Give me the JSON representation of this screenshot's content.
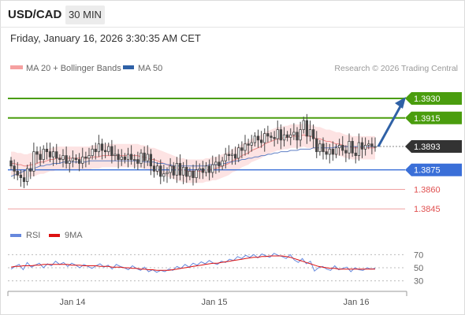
{
  "header": {
    "symbol": "USD/CAD",
    "interval": "30 MIN",
    "datetime": "Friday, January 16, 2026 3:30:35 AM CET"
  },
  "legend": {
    "ma20": "MA 20 + Bollinger Bands",
    "ma50": "MA 50",
    "copyright": "Research © 2026 Trading Central",
    "rsi": "RSI",
    "rsi_ma": "9MA"
  },
  "colors": {
    "green": "#4a9d0e",
    "blue": "#3a6fd8",
    "red": "#e05050",
    "dark": "#333333",
    "candle": "#444444",
    "band": "#fde3e3",
    "ma20": "#ee8888",
    "ma50": "#5f7fc4",
    "arrow": "#2f61a6",
    "rsi": "#6688dd",
    "rsi_ma": "#dd1111"
  },
  "chart_data": [
    {
      "type": "candlestick",
      "symbol": "USD/CAD",
      "interval": "30 MIN",
      "ylim": [
        1.3833,
        1.3947
      ],
      "x_ticks": [
        "Jan 14",
        "Jan 15",
        "Jan 16"
      ],
      "price_levels": [
        {
          "value": 1.393,
          "label": "1.3930",
          "style": "resistance"
        },
        {
          "value": 1.3915,
          "label": "1.3915",
          "style": "resistance"
        },
        {
          "value": 1.3893,
          "label": "1.3893",
          "style": "last"
        },
        {
          "value": 1.3875,
          "label": "1.3875",
          "style": "pivot"
        },
        {
          "value": 1.386,
          "label": "1.3860",
          "style": "support"
        },
        {
          "value": 1.3845,
          "label": "1.3845",
          "style": "support"
        }
      ],
      "closes": [
        1.3878,
        1.3874,
        1.3871,
        1.3869,
        1.3866,
        1.3876,
        1.3874,
        1.3889,
        1.3887,
        1.3883,
        1.3891,
        1.3889,
        1.3885,
        1.3889,
        1.3884,
        1.3883,
        1.3886,
        1.388,
        1.3882,
        1.3884,
        1.3883,
        1.388,
        1.3885,
        1.3884,
        1.3886,
        1.3891,
        1.3889,
        1.3895,
        1.389,
        1.3889,
        1.3893,
        1.3886,
        1.3887,
        1.3883,
        1.3885,
        1.3883,
        1.3887,
        1.3883,
        1.3883,
        1.388,
        1.3888,
        1.3882,
        1.3887,
        1.3878,
        1.3874,
        1.3878,
        1.387,
        1.3872,
        1.3873,
        1.3878,
        1.3871,
        1.388,
        1.3871,
        1.3877,
        1.387,
        1.3874,
        1.3869,
        1.3875,
        1.3876,
        1.3873,
        1.3878,
        1.3873,
        1.3879,
        1.3881,
        1.3878,
        1.3882,
        1.3887,
        1.3886,
        1.3887,
        1.3884,
        1.3892,
        1.389,
        1.3895,
        1.3894,
        1.3896,
        1.3901,
        1.3898,
        1.3896,
        1.3903,
        1.3901,
        1.39,
        1.3899,
        1.3906,
        1.3898,
        1.3902,
        1.39,
        1.3902,
        1.3904,
        1.3898,
        1.3906,
        1.3913,
        1.3901,
        1.3906,
        1.3899,
        1.3889,
        1.3895,
        1.3889,
        1.3887,
        1.3891,
        1.3887,
        1.3892,
        1.3894,
        1.389,
        1.3888,
        1.3897,
        1.3888,
        1.3886,
        1.3896,
        1.3891,
        1.3894,
        1.3895,
        1.3893,
        1.3893
      ],
      "ma20": [
        1.388,
        1.388,
        1.3879,
        1.3879,
        1.3878,
        1.3878,
        1.3879,
        1.3879,
        1.388,
        1.3881,
        1.3881,
        1.3882,
        1.3883,
        1.3883,
        1.3884,
        1.3884,
        1.3884,
        1.3884,
        1.3884,
        1.3884,
        1.3884,
        1.3884,
        1.3884,
        1.3884,
        1.3884,
        1.3885,
        1.3885,
        1.3885,
        1.3886,
        1.3886,
        1.3886,
        1.3886,
        1.3886,
        1.3886,
        1.3886,
        1.3886,
        1.3886,
        1.3886,
        1.3886,
        1.3886,
        1.3885,
        1.3885,
        1.3884,
        1.3883,
        1.3883,
        1.3882,
        1.3881,
        1.388,
        1.3879,
        1.3878,
        1.3877,
        1.3876,
        1.3875,
        1.3875,
        1.3874,
        1.3874,
        1.3874,
        1.3874,
        1.3874,
        1.3874,
        1.3875,
        1.3875,
        1.3876,
        1.3876,
        1.3877,
        1.3878,
        1.3879,
        1.388,
        1.3882,
        1.3883,
        1.3884,
        1.3886,
        1.3887,
        1.3888,
        1.389,
        1.3891,
        1.3892,
        1.3893,
        1.3895,
        1.3896,
        1.3897,
        1.3898,
        1.3899,
        1.3899,
        1.39,
        1.39,
        1.3901,
        1.3901,
        1.3901,
        1.3901,
        1.3902,
        1.3901,
        1.3901,
        1.39,
        1.3899,
        1.3899,
        1.3898,
        1.3897,
        1.3897,
        1.3896,
        1.3895,
        1.3895,
        1.3894,
        1.3893,
        1.3893,
        1.3892,
        1.3892,
        1.3892,
        1.3892,
        1.3892,
        1.3892,
        1.3892,
        1.3892
      ],
      "ma50": [
        1.387,
        1.3871,
        1.3872,
        1.3873,
        1.3874,
        1.3875,
        1.3876,
        1.3876,
        1.3877,
        1.3878,
        1.3878,
        1.3879,
        1.3879,
        1.388,
        1.388,
        1.388,
        1.3881,
        1.3881,
        1.3881,
        1.3881,
        1.3881,
        1.3881,
        1.3881,
        1.3881,
        1.3882,
        1.3882,
        1.3882,
        1.3882,
        1.3882,
        1.3882,
        1.3882,
        1.3882,
        1.3882,
        1.3882,
        1.3882,
        1.3882,
        1.3882,
        1.3882,
        1.3882,
        1.3882,
        1.3882,
        1.3881,
        1.3881,
        1.3881,
        1.3881,
        1.388,
        1.388,
        1.388,
        1.3879,
        1.3879,
        1.3878,
        1.3878,
        1.3878,
        1.3878,
        1.3878,
        1.3878,
        1.3878,
        1.3878,
        1.3878,
        1.3878,
        1.3878,
        1.3879,
        1.3879,
        1.3879,
        1.3879,
        1.388,
        1.388,
        1.3881,
        1.3881,
        1.3882,
        1.3882,
        1.3883,
        1.3883,
        1.3884,
        1.3884,
        1.3885,
        1.3885,
        1.3886,
        1.3886,
        1.3887,
        1.3887,
        1.3888,
        1.3888,
        1.3889,
        1.3889,
        1.3889,
        1.389,
        1.389,
        1.389,
        1.3891,
        1.3891,
        1.3891,
        1.3891,
        1.3892,
        1.3892,
        1.3892,
        1.3892,
        1.3892,
        1.3892,
        1.3892,
        1.3893,
        1.3893,
        1.3893,
        1.3893,
        1.3893,
        1.3893,
        1.3893,
        1.3893,
        1.3893,
        1.3893,
        1.3893,
        1.3893,
        1.3893
      ],
      "band_width": 0.0009,
      "forecast": {
        "from": 1.3893,
        "to": 1.393
      }
    },
    {
      "type": "line",
      "title": "RSI",
      "ylim": [
        20,
        80
      ],
      "y_ticks": [
        70,
        50,
        30
      ],
      "series": [
        {
          "name": "RSI",
          "values": [
            48,
            52,
            55,
            47,
            58,
            51,
            54,
            57,
            50,
            56,
            53,
            60,
            55,
            58,
            52,
            57,
            54,
            50,
            55,
            52,
            49,
            53,
            56,
            51,
            54,
            48,
            55,
            52,
            50,
            47,
            53,
            49,
            46,
            51,
            44,
            47,
            43,
            46,
            44,
            48,
            46,
            52,
            49,
            55,
            51,
            57,
            54,
            59,
            56,
            61,
            57,
            55,
            60,
            58,
            63,
            61,
            67,
            64,
            69,
            66,
            70,
            65,
            71,
            68,
            66,
            72,
            69,
            67,
            64,
            70,
            62,
            58,
            64,
            56,
            60,
            45,
            50,
            52,
            48,
            46,
            53,
            47,
            49,
            51,
            44,
            50,
            47,
            46,
            50,
            48,
            49
          ],
          "color": "#6688dd"
        },
        {
          "name": "9MA",
          "values": [
            51,
            52,
            52,
            53,
            53,
            53,
            54,
            54,
            55,
            55,
            55,
            55,
            55,
            55,
            55,
            54,
            54,
            54,
            53,
            53,
            53,
            53,
            52,
            52,
            52,
            51,
            51,
            51,
            50,
            50,
            49,
            49,
            48,
            48,
            47,
            47,
            46,
            46,
            46,
            46,
            47,
            48,
            49,
            50,
            51,
            52,
            53,
            54,
            55,
            56,
            57,
            57,
            58,
            59,
            60,
            61,
            62,
            63,
            64,
            65,
            66,
            66,
            67,
            67,
            68,
            68,
            68,
            68,
            67,
            66,
            64,
            62,
            60,
            58,
            56,
            54,
            52,
            51,
            50,
            49,
            49,
            48,
            48,
            48,
            48,
            48,
            48,
            48,
            48,
            48,
            48
          ],
          "color": "#dd1111"
        }
      ]
    }
  ]
}
